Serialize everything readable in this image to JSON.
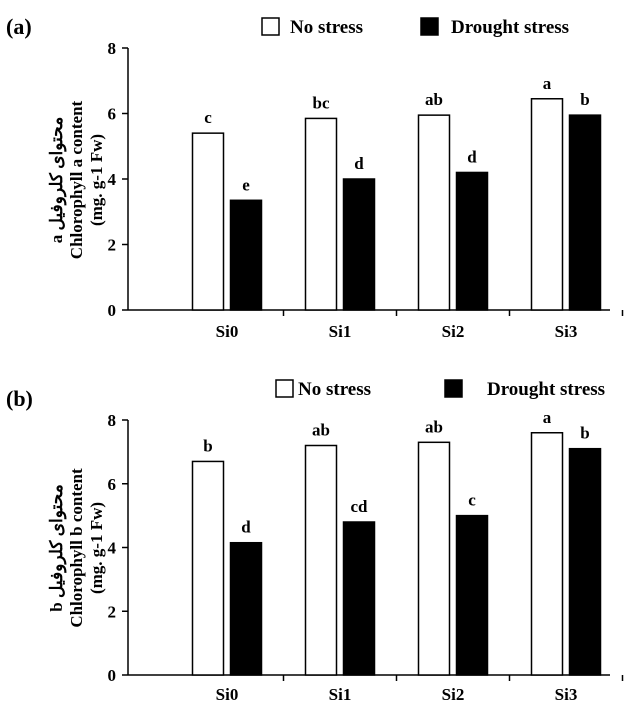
{
  "chart_data": [
    {
      "panel_label": "(a)",
      "type": "bar",
      "categories": [
        "Si0",
        "Si1",
        "Si2",
        "Si3"
      ],
      "series": [
        {
          "name": "No stress",
          "values": [
            5.4,
            5.85,
            5.95,
            6.45
          ],
          "letters": [
            "c",
            "bc",
            "ab",
            "a"
          ],
          "fill": "#ffffff"
        },
        {
          "name": "Drought stress",
          "values": [
            3.35,
            4.0,
            4.2,
            5.95
          ],
          "letters": [
            "e",
            "d",
            "d",
            "b"
          ],
          "fill": "#000000"
        }
      ],
      "ylim": [
        0,
        8
      ],
      "yticks": [
        0,
        2,
        4,
        6,
        8
      ],
      "ylabel_lines": [
        "a محتوای کلروفیل",
        "Chlorophyll  a content",
        "(mg. g-1 Fw)"
      ],
      "legend_position": "top-right",
      "grid": false
    },
    {
      "panel_label": "(b)",
      "type": "bar",
      "categories": [
        "Si0",
        "Si1",
        "Si2",
        "Si3"
      ],
      "series": [
        {
          "name": "No stress",
          "values": [
            6.7,
            7.2,
            7.3,
            7.6
          ],
          "letters": [
            "b",
            "ab",
            "ab",
            "a"
          ],
          "fill": "#ffffff"
        },
        {
          "name": "Drought stress",
          "values": [
            4.15,
            4.8,
            5.0,
            7.1
          ],
          "letters": [
            "d",
            "cd",
            "c",
            "b"
          ],
          "fill": "#000000"
        }
      ],
      "ylim": [
        0,
        8
      ],
      "yticks": [
        0,
        2,
        4,
        6,
        8
      ],
      "ylabel_lines": [
        "b محتوای کلروفیل",
        "Chlorophyll  b content",
        "(mg. g-1 Fw)"
      ],
      "legend_position": "top-right",
      "grid": false
    }
  ]
}
